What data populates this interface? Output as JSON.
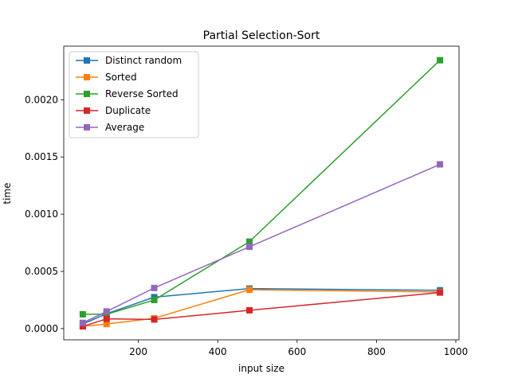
{
  "chart_data": {
    "type": "line",
    "title": "Partial Selection-Sort",
    "xlabel": "input size",
    "ylabel": "time",
    "x": [
      60,
      120,
      240,
      480,
      960
    ],
    "xlim": [
      12,
      1008
    ],
    "ylim": [
      -9.8e-05,
      0.002468
    ],
    "xticks": [
      200,
      400,
      600,
      800,
      1000
    ],
    "xtick_labels": [
      "200",
      "400",
      "600",
      "800",
      "1000"
    ],
    "yticks": [
      0.0,
      0.0005,
      0.001,
      0.0015,
      0.002
    ],
    "ytick_labels": [
      "0.0000",
      "0.0005",
      "0.0010",
      "0.0015",
      "0.0020"
    ],
    "grid": false,
    "legend_position": "top-left",
    "marker": "square",
    "series": [
      {
        "name": "Distinct random",
        "color": "#1f77b4",
        "values": [
          4e-05,
          0.00013,
          0.000275,
          0.00035,
          0.000335
        ]
      },
      {
        "name": "Sorted",
        "color": "#ff7f0e",
        "values": [
          2e-05,
          4e-05,
          9e-05,
          0.00034,
          0.00032
        ]
      },
      {
        "name": "Reverse Sorted",
        "color": "#2ca02c",
        "values": [
          0.000125,
          0.000125,
          0.00025,
          0.00076,
          0.002345
        ]
      },
      {
        "name": "Duplicate",
        "color": "#d62728",
        "values": [
          2e-05,
          8.5e-05,
          8e-05,
          0.00016,
          0.000315
        ]
      },
      {
        "name": "Average",
        "color": "#9467bd",
        "values": [
          5e-05,
          0.00015,
          0.000355,
          0.000715,
          0.001435
        ]
      }
    ]
  }
}
